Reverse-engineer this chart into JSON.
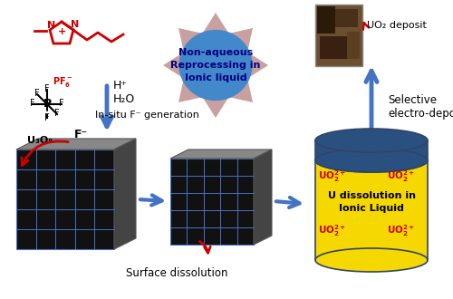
{
  "bg_color": "#ffffff",
  "ionic_liquid_color": "#cc0000",
  "arrow_blue": "#4472c4",
  "arrow_red": "#cc0000",
  "star_outer_color": "#c9a0a0",
  "star_inner_color": "#4488cc",
  "star_text": "Non-aqueous\nReprocessing in\nIonic liquid",
  "star_text_color": "#000080",
  "cube1_label": "U₃O₈",
  "cube_top_color": "#888888",
  "cube_front_color": "#111111",
  "cube_side_color": "#444444",
  "cube_grid_color": "#4472c4",
  "cylinder_cap_color": "#2a5080",
  "cylinder_body_color": "#f5d800",
  "cylinder_text": "U dissolution in\nIonic Liquid",
  "cylinder_text_color": "#000000",
  "uo2_text_color": "#cc0000",
  "surface_dissolution_label": "Surface dissolution",
  "selective_electro_label": "Selective\nelectro-deposition",
  "uo2_deposit_label": "UO₂ deposit",
  "h_plus_label": "H⁺",
  "h2o_label": "H₂O",
  "insitu_label": "In-situ F⁻ generation",
  "f_minus_label": "F⁻",
  "pf6_label": "PF₆⁻",
  "photo_colors": [
    "#5a4530",
    "#3a2810",
    "#6b5840",
    "#4a3820"
  ],
  "border_color": "#888888"
}
